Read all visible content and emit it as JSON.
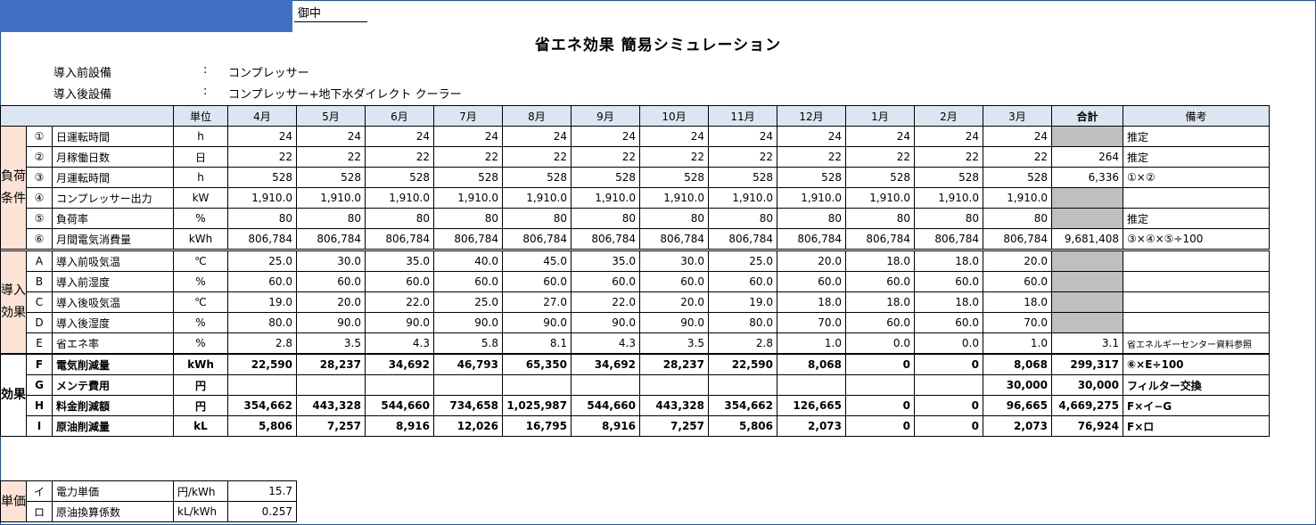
{
  "header": {
    "suffix": "御中",
    "title": "省エネ効果 簡易シミュレーション"
  },
  "equipment": {
    "before_label": "導入前設備",
    "before_sep": ":",
    "before_value": "コンプレッサー",
    "after_label": "導入後設備",
    "after_sep": ":",
    "after_value": "コンプレッサー+地下水ダイレクト クーラー"
  },
  "columns": {
    "unit": "単位",
    "months": [
      "4月",
      "5月",
      "6月",
      "7月",
      "8月",
      "9月",
      "10月",
      "11月",
      "12月",
      "1月",
      "2月",
      "3月"
    ],
    "total": "合計",
    "remarks": "備考"
  },
  "groups": {
    "load": "負荷条件",
    "effect": "導入効果",
    "result": "効果"
  },
  "rows": [
    {
      "no": "①",
      "item": "日運転時間",
      "unit": "h",
      "values": [
        "24",
        "24",
        "24",
        "24",
        "24",
        "24",
        "24",
        "24",
        "24",
        "24",
        "24",
        "24"
      ],
      "total": "",
      "remarks": "推定"
    },
    {
      "no": "②",
      "item": "月稼働日数",
      "unit": "日",
      "values": [
        "22",
        "22",
        "22",
        "22",
        "22",
        "22",
        "22",
        "22",
        "22",
        "22",
        "22",
        "22"
      ],
      "total": "264",
      "remarks": "推定"
    },
    {
      "no": "③",
      "item": "月運転時間",
      "unit": "h",
      "values": [
        "528",
        "528",
        "528",
        "528",
        "528",
        "528",
        "528",
        "528",
        "528",
        "528",
        "528",
        "528"
      ],
      "total": "6,336",
      "remarks": "①×②"
    },
    {
      "no": "④",
      "item": "コンプレッサー出力",
      "unit": "kW",
      "values": [
        "1,910.0",
        "1,910.0",
        "1,910.0",
        "1,910.0",
        "1,910.0",
        "1,910.0",
        "1,910.0",
        "1,910.0",
        "1,910.0",
        "1,910.0",
        "1,910.0",
        "1,910.0"
      ],
      "total": "",
      "remarks": ""
    },
    {
      "no": "⑤",
      "item": "負荷率",
      "unit": "%",
      "values": [
        "80",
        "80",
        "80",
        "80",
        "80",
        "80",
        "80",
        "80",
        "80",
        "80",
        "80",
        "80"
      ],
      "total": "",
      "remarks": "推定"
    },
    {
      "no": "⑥",
      "item": "月間電気消費量",
      "unit": "kWh",
      "values": [
        "806,784",
        "806,784",
        "806,784",
        "806,784",
        "806,784",
        "806,784",
        "806,784",
        "806,784",
        "806,784",
        "806,784",
        "806,784",
        "806,784"
      ],
      "total": "9,681,408",
      "remarks": "③×④×⑤÷100"
    },
    {
      "no": "A",
      "item": "導入前吸気温",
      "unit": "℃",
      "values": [
        "25.0",
        "30.0",
        "35.0",
        "40.0",
        "45.0",
        "35.0",
        "30.0",
        "25.0",
        "20.0",
        "18.0",
        "18.0",
        "20.0"
      ],
      "total": "",
      "remarks": ""
    },
    {
      "no": "B",
      "item": "導入前湿度",
      "unit": "%",
      "values": [
        "60.0",
        "60.0",
        "60.0",
        "60.0",
        "60.0",
        "60.0",
        "60.0",
        "60.0",
        "60.0",
        "60.0",
        "60.0",
        "60.0"
      ],
      "total": "",
      "remarks": ""
    },
    {
      "no": "C",
      "item": "導入後吸気温",
      "unit": "℃",
      "values": [
        "19.0",
        "20.0",
        "22.0",
        "25.0",
        "27.0",
        "22.0",
        "20.0",
        "19.0",
        "18.0",
        "18.0",
        "18.0",
        "18.0"
      ],
      "total": "",
      "remarks": ""
    },
    {
      "no": "D",
      "item": "導入後湿度",
      "unit": "%",
      "values": [
        "80.0",
        "90.0",
        "90.0",
        "90.0",
        "90.0",
        "90.0",
        "90.0",
        "80.0",
        "70.0",
        "60.0",
        "60.0",
        "70.0"
      ],
      "total": "",
      "remarks": ""
    },
    {
      "no": "E",
      "item": "省エネ率",
      "unit": "%",
      "values": [
        "2.8",
        "3.5",
        "4.3",
        "5.8",
        "8.1",
        "4.3",
        "3.5",
        "2.8",
        "1.0",
        "0.0",
        "0.0",
        "1.0"
      ],
      "total": "3.1",
      "remarks": "省エネルギーセンター資料参照"
    },
    {
      "no": "F",
      "item": "電気削減量",
      "unit": "kWh",
      "values": [
        "22,590",
        "28,237",
        "34,692",
        "46,793",
        "65,350",
        "34,692",
        "28,237",
        "22,590",
        "8,068",
        "0",
        "0",
        "8,068"
      ],
      "total": "299,317",
      "remarks": "⑥×E÷100"
    },
    {
      "no": "G",
      "item": "メンテ費用",
      "unit": "円",
      "values": [
        "",
        "",
        "",
        "",
        "",
        "",
        "",
        "",
        "",
        "",
        "",
        "30,000"
      ],
      "total": "30,000",
      "remarks": "フィルター交換"
    },
    {
      "no": "H",
      "item": "料金削減額",
      "unit": "円",
      "values": [
        "354,662",
        "443,328",
        "544,660",
        "734,658",
        "1,025,987",
        "544,660",
        "443,328",
        "354,662",
        "126,665",
        "0",
        "0",
        "96,665"
      ],
      "total": "4,669,275",
      "remarks": "F×イ−G"
    },
    {
      "no": "I",
      "item": "原油削減量",
      "unit": "kL",
      "values": [
        "5,806",
        "7,257",
        "8,916",
        "12,026",
        "16,795",
        "8,916",
        "7,257",
        "5,806",
        "2,073",
        "0",
        "0",
        "2,073"
      ],
      "total": "76,924",
      "remarks": "F×ロ"
    }
  ],
  "unit_price": {
    "group": "単価",
    "rows": [
      {
        "no": "イ",
        "item": "電力単価",
        "unit": "円/kWh",
        "value": "15.7"
      },
      {
        "no": "ロ",
        "item": "原油換算係数",
        "unit": "kL/kWh",
        "value": "0.257"
      }
    ]
  }
}
